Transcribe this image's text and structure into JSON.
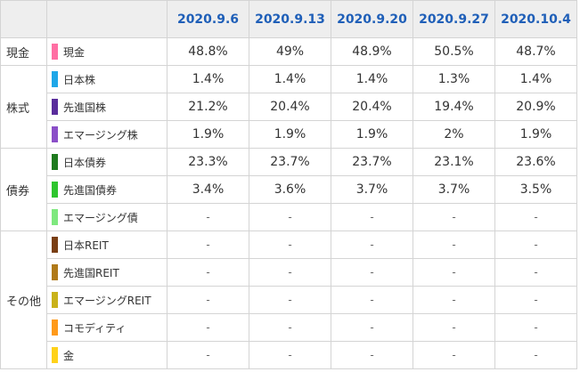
{
  "table": {
    "headers": [
      "2020.9.6",
      "2020.9.13",
      "2020.9.20",
      "2020.9.27",
      "2020.10.4"
    ],
    "groups": [
      {
        "label": "現金",
        "rows": [
          {
            "name": "現金",
            "color": "#ff6fa3",
            "values": [
              "48.8%",
              "49%",
              "48.9%",
              "50.5%",
              "48.7%"
            ]
          }
        ]
      },
      {
        "label": "株式",
        "rows": [
          {
            "name": "日本株",
            "color": "#1fa7e8",
            "values": [
              "1.4%",
              "1.4%",
              "1.4%",
              "1.3%",
              "1.4%"
            ]
          },
          {
            "name": "先進国株",
            "color": "#5a2d9c",
            "values": [
              "21.2%",
              "20.4%",
              "20.4%",
              "19.4%",
              "20.9%"
            ]
          },
          {
            "name": "エマージング株",
            "color": "#8b4fc8",
            "values": [
              "1.9%",
              "1.9%",
              "1.9%",
              "2%",
              "1.9%"
            ]
          }
        ]
      },
      {
        "label": "債券",
        "rows": [
          {
            "name": "日本債券",
            "color": "#1e7a1e",
            "values": [
              "23.3%",
              "23.7%",
              "23.7%",
              "23.1%",
              "23.6%"
            ]
          },
          {
            "name": "先進国債券",
            "color": "#2ec52e",
            "values": [
              "3.4%",
              "3.6%",
              "3.7%",
              "3.7%",
              "3.5%"
            ]
          },
          {
            "name": "エマージング債",
            "color": "#7ee87e",
            "values": [
              "-",
              "-",
              "-",
              "-",
              "-"
            ]
          }
        ]
      },
      {
        "label": "その他",
        "rows": [
          {
            "name": "日本REIT",
            "color": "#7a3f14",
            "values": [
              "-",
              "-",
              "-",
              "-",
              "-"
            ]
          },
          {
            "name": "先進国REIT",
            "color": "#b07a1a",
            "values": [
              "-",
              "-",
              "-",
              "-",
              "-"
            ]
          },
          {
            "name": "エマージングREIT",
            "color": "#c9b21a",
            "values": [
              "-",
              "-",
              "-",
              "-",
              "-"
            ]
          },
          {
            "name": "コモディティ",
            "color": "#ff9a1a",
            "values": [
              "-",
              "-",
              "-",
              "-",
              "-"
            ]
          },
          {
            "name": "金",
            "color": "#ffd21a",
            "values": [
              "-",
              "-",
              "-",
              "-",
              "-"
            ]
          }
        ]
      }
    ]
  }
}
